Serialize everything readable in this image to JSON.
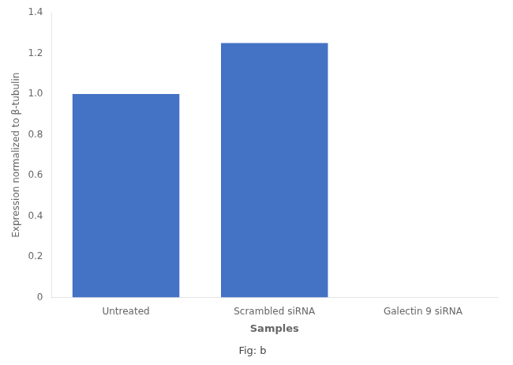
{
  "chart_data": {
    "type": "bar",
    "categories": [
      "Untreated",
      "Scrambled siRNA",
      "Galectin 9 siRNA"
    ],
    "values": [
      1.0,
      1.25,
      0.0
    ],
    "color": "#4472c4",
    "ylim": [
      0,
      1.4
    ],
    "yticks": [
      0,
      0.2,
      0.4,
      0.6,
      0.8,
      {
        "value": 1.0,
        "label": "1.0"
      },
      1.2,
      1.4
    ],
    "xlabel": "Samples",
    "ylabel": "Expression normalized to β-tubulin",
    "subtitle": "Fig: b",
    "grid": false
  }
}
